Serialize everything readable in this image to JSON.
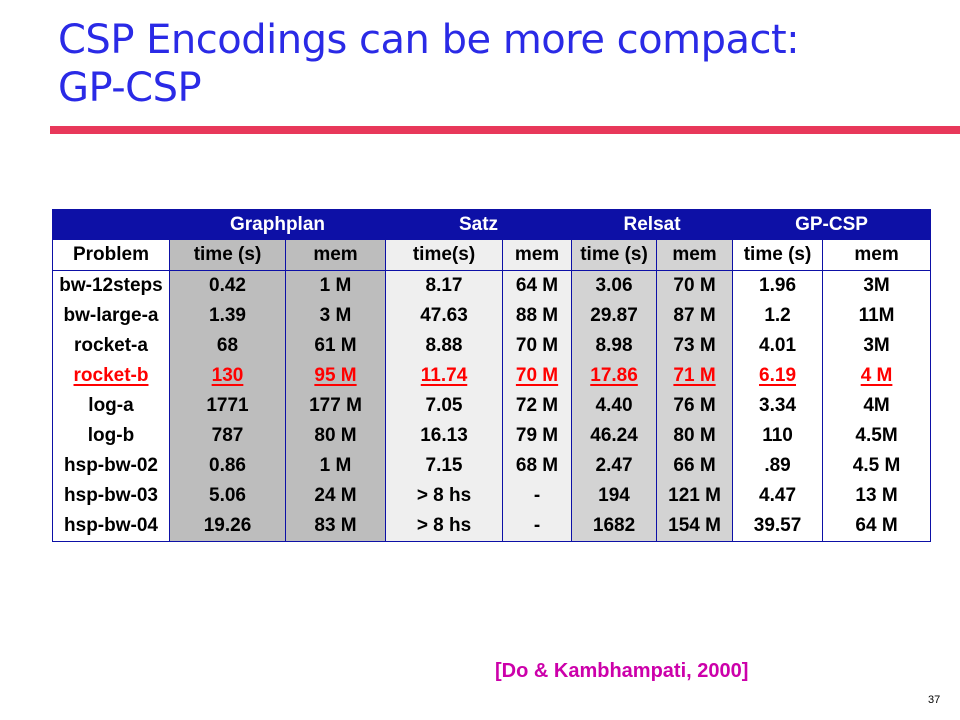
{
  "slide": {
    "title_line1": "CSP Encodings can be more compact:",
    "title_line2": "GP-CSP",
    "citation": "[Do & Kambhampati, 2000]",
    "page_number": "37",
    "colors": {
      "title": "#2a2ae6",
      "accent_bar": "#e8385a",
      "table_header": "#0d10a6",
      "highlight_row": "#ff0000",
      "citation": "#cc00aa"
    }
  },
  "table": {
    "groups": [
      "",
      "Graphplan",
      "Satz",
      "Relsat",
      "GP-CSP"
    ],
    "columns": [
      "Problem",
      "time (s)",
      "mem",
      "time(s)",
      "mem",
      "time (s)",
      "mem",
      "time (s)",
      "mem"
    ],
    "rows": [
      [
        "bw-12steps",
        "0.42",
        "1 M",
        "8.17",
        "64 M",
        "3.06",
        "70 M",
        "1.96",
        "3M"
      ],
      [
        "bw-large-a",
        "1.39",
        "3 M",
        "47.63",
        "88 M",
        "29.87",
        "87 M",
        "1.2",
        "11M"
      ],
      [
        "rocket-a",
        "68",
        "61 M",
        "8.88",
        "70 M",
        "8.98",
        "73 M",
        "4.01",
        "3M"
      ],
      [
        "rocket-b",
        "130",
        "95 M",
        "11.74",
        "70 M",
        "17.86",
        "71 M",
        "6.19",
        "4 M"
      ],
      [
        "log-a",
        "1771",
        "177 M",
        "7.05",
        "72 M",
        "4.40",
        "76 M",
        "3.34",
        "4M"
      ],
      [
        "log-b",
        "787",
        "80 M",
        "16.13",
        "79 M",
        "46.24",
        "80 M",
        "110",
        "4.5M"
      ],
      [
        "hsp-bw-02",
        "0.86",
        "1 M",
        "7.15",
        "68 M",
        "2.47",
        "66 M",
        ".89",
        "4.5 M"
      ],
      [
        "hsp-bw-03",
        "5.06",
        "24 M",
        "> 8 hs",
        "-",
        "194",
        "121 M",
        "4.47",
        "13 M"
      ],
      [
        "hsp-bw-04",
        "19.26",
        "83 M",
        "> 8 hs",
        "-",
        "1682",
        "154 M",
        "39.57",
        "64 M"
      ]
    ],
    "highlighted_row": "rocket-b"
  }
}
